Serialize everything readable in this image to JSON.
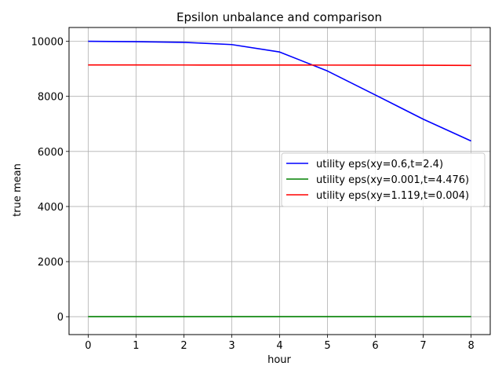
{
  "chart_data": {
    "type": "line",
    "title": "Epsilon unbalance and comparison",
    "xlabel": "hour",
    "ylabel": "true mean",
    "x": [
      0,
      1,
      2,
      3,
      4,
      5,
      6,
      7,
      8
    ],
    "xlim": [
      -0.4,
      8.4
    ],
    "ylim": [
      -650,
      10500
    ],
    "xticks": [
      0,
      1,
      2,
      3,
      4,
      5,
      6,
      7,
      8
    ],
    "yticks": [
      0,
      2000,
      4000,
      6000,
      8000,
      10000
    ],
    "grid": true,
    "legend_position": "right",
    "series": [
      {
        "name": "utility eps(xy=0.6,t=2.4)",
        "color": "#0000ff",
        "values": [
          10000,
          9985,
          9960,
          9880,
          9610,
          8920,
          8050,
          7170,
          6380
        ]
      },
      {
        "name": "utility eps(xy=0.001,t=4.476)",
        "color": "#008000",
        "values": [
          0,
          0,
          0,
          0,
          0,
          0,
          0,
          0,
          0
        ]
      },
      {
        "name": "utility eps(xy=1.119,t=0.004)",
        "color": "#ff0000",
        "values": [
          9140,
          9140,
          9138,
          9137,
          9136,
          9135,
          9133,
          9128,
          9122
        ]
      }
    ]
  }
}
